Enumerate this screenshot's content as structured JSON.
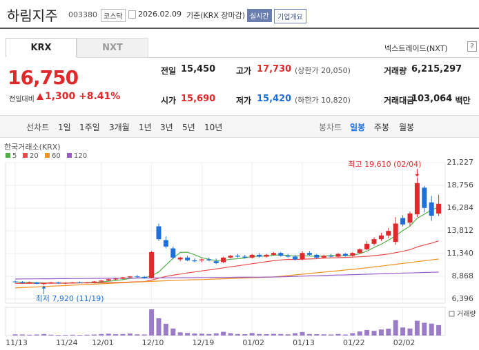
{
  "header": {
    "name": "하림지주",
    "code": "003380",
    "market": "코스닥",
    "date": "2026.02.09",
    "basis": "기준(KRX 장마감)",
    "realtime": "실시간",
    "company": "기업개요"
  },
  "tabs": {
    "krx": "KRX",
    "nxt": "NXT",
    "nextrade": "넥스트레이드(NXT)",
    "help": "?"
  },
  "price": {
    "current": "16,750",
    "change_label": "전일대비",
    "change": "1,300",
    "change_rate": "+8.41%"
  },
  "quote": {
    "rows": [
      [
        {
          "label": "전일",
          "value": "15,450"
        },
        {
          "label": "고가",
          "value": "17,730",
          "note": "(상한가 20,050)"
        },
        {
          "label": "거래량",
          "value": "6,215,297"
        }
      ],
      [
        {
          "label": "시가",
          "value": "15,690"
        },
        {
          "label": "저가",
          "value": "15,420",
          "note": "(하한가 10,820)"
        },
        {
          "label": "거래대금",
          "value": "103,064",
          "unit": "백만"
        }
      ]
    ]
  },
  "toolbar": {
    "line_chart": "선차트",
    "line_periods": [
      "1일",
      "1주일",
      "3개월",
      "1년",
      "3년",
      "5년",
      "10년"
    ],
    "candle_chart": "봉차트",
    "candle_periods": [
      "일봉",
      "주봉",
      "월봉"
    ]
  },
  "chart_data": {
    "type": "candlestick",
    "title": "한국거래소(KRX)",
    "categories": [
      "11/13",
      null,
      null,
      null,
      null,
      null,
      null,
      "11/24",
      null,
      null,
      null,
      null,
      "12/01",
      null,
      null,
      null,
      null,
      null,
      null,
      "12/10",
      null,
      null,
      null,
      null,
      null,
      null,
      "12/19",
      null,
      null,
      null,
      null,
      null,
      null,
      "01/02",
      null,
      null,
      null,
      null,
      null,
      null,
      "01/13",
      null,
      null,
      null,
      null,
      null,
      null,
      "01/22",
      null,
      null,
      null,
      null,
      null,
      null,
      "02/02",
      null,
      null,
      null,
      null,
      null
    ],
    "open": [
      8300,
      8250,
      8150,
      8200,
      8050,
      8100,
      8200,
      8100,
      8150,
      8200,
      8150,
      8200,
      8300,
      8400,
      8550,
      8600,
      8750,
      8850,
      8800,
      8700,
      14300,
      12800,
      11900,
      10700,
      10900,
      10600,
      10600,
      10700,
      10500,
      10400,
      10900,
      11100,
      11000,
      10900,
      11200,
      11000,
      11200,
      11400,
      11100,
      11000,
      10700,
      11400,
      11200,
      10900,
      11100,
      11000,
      11300,
      11100,
      11400,
      11800,
      12400,
      12900,
      13300,
      12600,
      15200,
      14700,
      15600,
      18500,
      16900,
      15690
    ],
    "high": [
      8400,
      8350,
      8300,
      8250,
      8150,
      8250,
      8250,
      8200,
      8250,
      8300,
      8250,
      8350,
      8450,
      8600,
      8700,
      8800,
      8900,
      9000,
      8900,
      11600,
      14600,
      13200,
      12100,
      11000,
      11100,
      10800,
      10800,
      10900,
      10800,
      11000,
      11200,
      11300,
      11200,
      11300,
      11400,
      11300,
      11500,
      11500,
      11300,
      11200,
      11600,
      11600,
      11300,
      11200,
      11300,
      11400,
      11400,
      11500,
      11900,
      12700,
      13100,
      13600,
      14100,
      15300,
      15500,
      15900,
      19610,
      18700,
      17600,
      17730
    ],
    "low": [
      8150,
      8100,
      8050,
      8000,
      7920,
      8050,
      8050,
      8000,
      8100,
      8100,
      8100,
      8150,
      8250,
      8350,
      8450,
      8550,
      8650,
      8700,
      8600,
      8650,
      12700,
      11900,
      10700,
      10500,
      10500,
      10400,
      10400,
      10500,
      10200,
      10300,
      10800,
      10900,
      10800,
      10800,
      10900,
      10900,
      11100,
      11000,
      10900,
      10600,
      10600,
      11100,
      10800,
      10800,
      10900,
      10950,
      11000,
      11000,
      11300,
      11700,
      12200,
      12700,
      13000,
      12300,
      14300,
      14300,
      15300,
      15800,
      14900,
      15420
    ],
    "close": [
      8250,
      8150,
      8200,
      8050,
      8100,
      8200,
      8100,
      8150,
      8200,
      8150,
      8200,
      8300,
      8400,
      8550,
      8600,
      8750,
      8850,
      8800,
      8650,
      11500,
      12900,
      12100,
      10900,
      10900,
      10600,
      10500,
      10700,
      10600,
      10300,
      10900,
      11100,
      11000,
      10900,
      11200,
      11000,
      11200,
      11400,
      11100,
      11000,
      10700,
      11400,
      11200,
      10900,
      11100,
      11000,
      11300,
      11100,
      11400,
      11800,
      12400,
      12900,
      13300,
      13800,
      14600,
      14500,
      15700,
      19000,
      16300,
      15450,
      16750
    ],
    "up_color": "#e0292b",
    "down_color": "#1f6fd8",
    "series": [
      {
        "name": "5",
        "color": "#52b04a",
        "values": [
          8250,
          8220,
          8200,
          8160,
          8150,
          8140,
          8130,
          8120,
          8150,
          8160,
          8180,
          8210,
          8250,
          8330,
          8410,
          8500,
          8630,
          8690,
          8730,
          8910,
          9340,
          10090,
          10840,
          11460,
          11480,
          11210,
          10880,
          10720,
          10570,
          10600,
          10720,
          10780,
          10850,
          11040,
          11040,
          11060,
          11160,
          11180,
          11140,
          11060,
          11120,
          11060,
          11040,
          11060,
          11120,
          11100,
          11100,
          11160,
          11320,
          11600,
          12000,
          12360,
          12800,
          13260,
          13840,
          14320,
          15180,
          15620,
          16070,
          16380
        ]
      },
      {
        "name": "20",
        "color": "#e84a4a",
        "values": [
          8100,
          8100,
          8100,
          8110,
          8110,
          8120,
          8120,
          8130,
          8130,
          8140,
          8140,
          8150,
          8160,
          8170,
          8190,
          8210,
          8240,
          8270,
          8290,
          8450,
          8660,
          8850,
          8990,
          9110,
          9230,
          9340,
          9450,
          9560,
          9660,
          9780,
          9900,
          10010,
          10120,
          10230,
          10340,
          10450,
          10560,
          10640,
          10700,
          10690,
          10730,
          10750,
          10780,
          10840,
          10870,
          10890,
          10920,
          10950,
          10990,
          11040,
          11110,
          11190,
          11290,
          11440,
          11580,
          11760,
          12050,
          12270,
          12470,
          12720
        ]
      },
      {
        "name": "60",
        "color": "#f0921e",
        "values": [
          7600,
          7640,
          7680,
          7710,
          7750,
          7790,
          7830,
          7860,
          7900,
          7940,
          7980,
          8010,
          8050,
          8090,
          8130,
          8160,
          8200,
          8240,
          8280,
          8310,
          8350,
          8380,
          8400,
          8430,
          8460,
          8490,
          8510,
          8540,
          8570,
          8600,
          8620,
          8650,
          8680,
          8710,
          8730,
          8760,
          8790,
          8870,
          8940,
          9020,
          9090,
          9170,
          9250,
          9320,
          9400,
          9470,
          9550,
          9620,
          9700,
          9790,
          9890,
          9980,
          10080,
          10170,
          10270,
          10360,
          10460,
          10550,
          10650,
          10740
        ]
      },
      {
        "name": "120",
        "color": "#9a5bc9",
        "values": [
          8570,
          8580,
          8580,
          8590,
          8600,
          8600,
          8610,
          8610,
          8620,
          8620,
          8630,
          8640,
          8640,
          8650,
          8650,
          8660,
          8670,
          8670,
          8680,
          8680,
          8690,
          8700,
          8700,
          8710,
          8710,
          8720,
          8730,
          8730,
          8740,
          8740,
          8750,
          8760,
          8760,
          8770,
          8770,
          8780,
          8790,
          8810,
          8830,
          8860,
          8880,
          8910,
          8930,
          8950,
          8980,
          9000,
          9020,
          9050,
          9070,
          9090,
          9120,
          9140,
          9160,
          9190,
          9210,
          9230,
          9260,
          9280,
          9300,
          9320
        ]
      }
    ],
    "ylim": [
      6396,
      21227
    ],
    "yticks": [
      {
        "value": 21227,
        "label": "21,227"
      },
      {
        "value": 18756,
        "label": "18,756"
      },
      {
        "value": 16284,
        "label": "16,284"
      },
      {
        "value": 13812,
        "label": "13,812"
      },
      {
        "value": 11340,
        "label": "11,340"
      },
      {
        "value": 8868,
        "label": "8,868"
      },
      {
        "value": 6396,
        "label": "6,396"
      }
    ],
    "grid": true,
    "annotations": {
      "high": "최고 19,610 (02/04)",
      "low": "최저 7,920 (11/19)"
    },
    "volume_label": "거래량",
    "volume_color": "#9b7cc8",
    "volume_lim": [
      0,
      16000000
    ],
    "volume": [
      700000,
      600000,
      500000,
      600000,
      900000,
      500000,
      400000,
      400000,
      500000,
      400000,
      500000,
      600000,
      900000,
      1100000,
      800000,
      900000,
      1200000,
      700000,
      600000,
      15600000,
      10300000,
      7000000,
      4200000,
      1900000,
      1500000,
      1200000,
      1100000,
      900000,
      1300000,
      2200000,
      1400000,
      900000,
      800000,
      1500000,
      900000,
      800000,
      1000000,
      900000,
      700000,
      1400000,
      2100000,
      900000,
      800000,
      700000,
      600000,
      900000,
      600000,
      1400000,
      2400000,
      3300000,
      2800000,
      3600000,
      4100000,
      9200000,
      4800000,
      4200000,
      8800000,
      7600000,
      7100000,
      6215297
    ]
  }
}
